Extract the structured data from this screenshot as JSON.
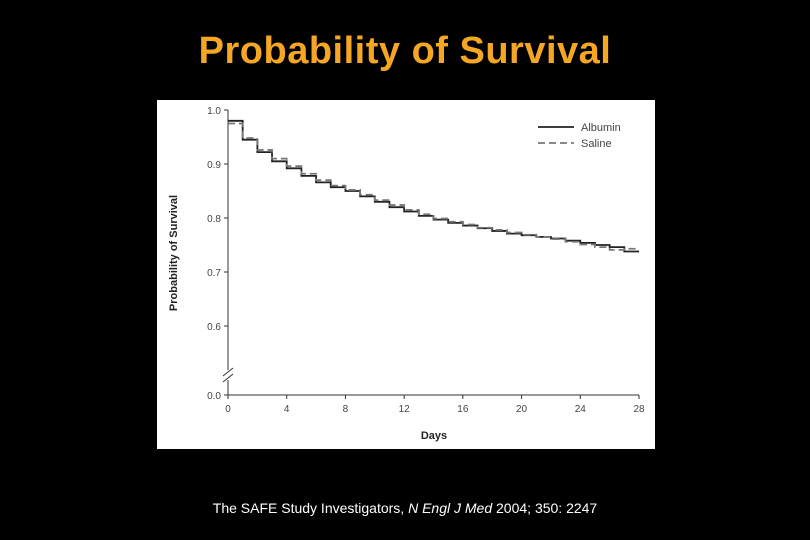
{
  "slide": {
    "title": "Probability of Survival"
  },
  "citation": {
    "authors": "The SAFE Study Investigators, ",
    "journal": "N Engl J Med",
    "details": " 2004; 350: 2247"
  },
  "colors": {
    "background": "#000000",
    "title": "#f5a623",
    "albumin": "#222222",
    "saline": "#777777"
  },
  "chart_data": {
    "type": "line",
    "step": true,
    "xlabel": "Days",
    "ylabel": "Probability of Survival",
    "xlim": [
      0,
      28
    ],
    "ylim_display": [
      0.55,
      1.0
    ],
    "axis_break": true,
    "xticks": [
      0,
      4,
      8,
      12,
      16,
      20,
      24,
      28
    ],
    "xtick_labels": [
      "0",
      "4",
      "8",
      "12",
      "16",
      "20",
      "24",
      "28"
    ],
    "yticks": [
      0.6,
      0.7,
      0.8,
      0.9,
      1.0
    ],
    "ytick_labels": [
      "0.6",
      "0.7",
      "0.8",
      "0.9",
      "1.0"
    ],
    "ybreak_tick_label": "0.0",
    "legend_position": "top-right",
    "grid": false,
    "series": [
      {
        "name": "Albumin",
        "style": "solid",
        "x": [
          0,
          1,
          2,
          3,
          4,
          5,
          6,
          7,
          8,
          9,
          10,
          11,
          12,
          13,
          14,
          15,
          16,
          17,
          18,
          19,
          20,
          21,
          22,
          23,
          24,
          25,
          26,
          27,
          28
        ],
        "y": [
          0.98,
          0.945,
          0.922,
          0.905,
          0.892,
          0.878,
          0.866,
          0.857,
          0.85,
          0.84,
          0.83,
          0.82,
          0.812,
          0.804,
          0.797,
          0.791,
          0.786,
          0.781,
          0.776,
          0.771,
          0.768,
          0.765,
          0.762,
          0.758,
          0.754,
          0.75,
          0.746,
          0.738,
          0.738
        ]
      },
      {
        "name": "Saline",
        "style": "dashed",
        "x": [
          0,
          1,
          2,
          3,
          4,
          5,
          6,
          7,
          8,
          9,
          10,
          11,
          12,
          13,
          14,
          15,
          16,
          17,
          18,
          19,
          20,
          21,
          22,
          23,
          24,
          25,
          26,
          27,
          28
        ],
        "y": [
          0.975,
          0.948,
          0.926,
          0.91,
          0.896,
          0.882,
          0.87,
          0.86,
          0.852,
          0.843,
          0.833,
          0.824,
          0.815,
          0.807,
          0.799,
          0.793,
          0.788,
          0.782,
          0.778,
          0.773,
          0.769,
          0.765,
          0.761,
          0.756,
          0.751,
          0.746,
          0.741,
          0.743,
          0.743
        ]
      }
    ]
  }
}
